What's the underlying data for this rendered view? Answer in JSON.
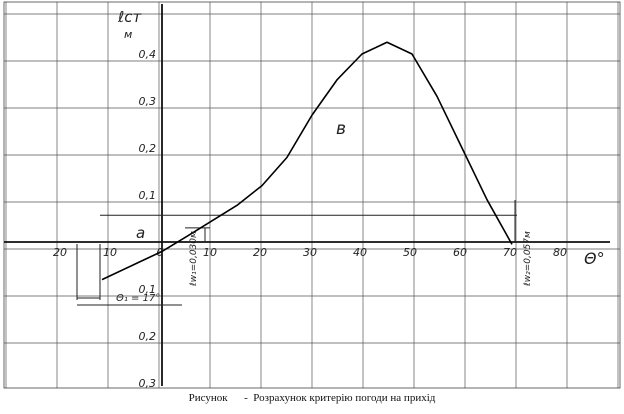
{
  "caption": {
    "label": "Рисунок",
    "text": "-  Розрахунок критерію погоди на прихід"
  },
  "chart_data": {
    "type": "line",
    "xlabel": "Θ°",
    "ylabel": "ℓст",
    "yunit": "м",
    "x_ticks": [
      "20",
      "10",
      "0",
      "10",
      "20",
      "30",
      "40",
      "50",
      "60",
      "70",
      "80"
    ],
    "y_ticks_positive": [
      "0,1",
      "0,2",
      "0,3",
      "0,4"
    ],
    "y_ticks_negative": [
      "0,1",
      "0,2",
      "0,3"
    ],
    "grid": true,
    "series": [
      {
        "x": [
          -12,
          -5,
          0,
          5,
          10,
          15,
          20,
          25,
          30,
          35,
          40,
          45,
          50,
          55,
          60,
          65,
          70
        ],
        "y": [
          -0.08,
          -0.045,
          -0.02,
          0.012,
          0.045,
          0.078,
          0.12,
          0.18,
          0.27,
          0.345,
          0.4,
          0.425,
          0.4,
          0.31,
          0.2,
          0.09,
          -0.005
        ]
      }
    ],
    "annotations": {
      "area_a": "a",
      "area_b": "в",
      "theta1": "Θ₁ = 17°",
      "l_w1": "ℓw₁=0,030м",
      "l_w2": "ℓw₂=0,057м",
      "theta1_value": -17,
      "l_w1_value": 0.03,
      "l_w2_value": 0.057,
      "theta_w2": 71
    }
  }
}
